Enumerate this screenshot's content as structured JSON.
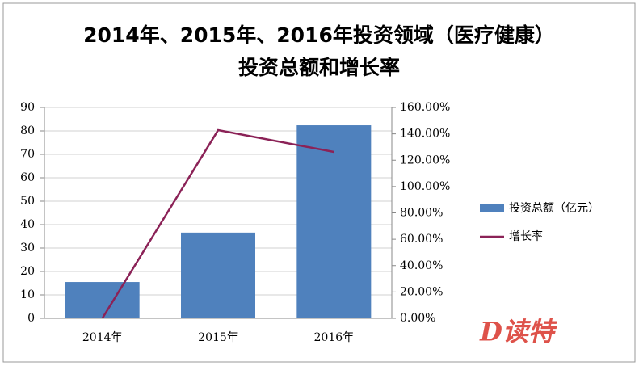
{
  "chart_data": {
    "type": "bar-line",
    "title": "2014年、2015年、2016年投资领域（医疗健康）投资总额和增长率",
    "categories": [
      "2014年",
      "2015年",
      "2016年"
    ],
    "series": [
      {
        "name": "投资总额（亿元）",
        "type": "bar",
        "color": "#4f81bd",
        "values": [
          15.5,
          36.6,
          82.4
        ]
      },
      {
        "name": "增长率",
        "type": "line",
        "color": "#8b2257",
        "axis": "y2",
        "values": [
          0,
          142.8,
          126.3
        ]
      }
    ],
    "ylim": [
      0,
      90
    ],
    "yticks": [
      0,
      10,
      20,
      30,
      40,
      50,
      60,
      70,
      80,
      90
    ],
    "y2lim": [
      0,
      160
    ],
    "y2ticks": [
      {
        "value": 0,
        "label": "0.00%"
      },
      {
        "value": 20,
        "label": "20.00%"
      },
      {
        "value": 40,
        "label": "40.00%"
      },
      {
        "value": 60,
        "label": "60.00%"
      },
      {
        "value": 80,
        "label": "80.00%"
      },
      {
        "value": 100,
        "label": "100.00%"
      },
      {
        "value": 120,
        "label": "120.00%"
      },
      {
        "value": 140,
        "label": "140.00%"
      },
      {
        "value": 160,
        "label": "160.00%"
      }
    ],
    "grid": true,
    "legend": "right",
    "watermark": "D读特"
  }
}
